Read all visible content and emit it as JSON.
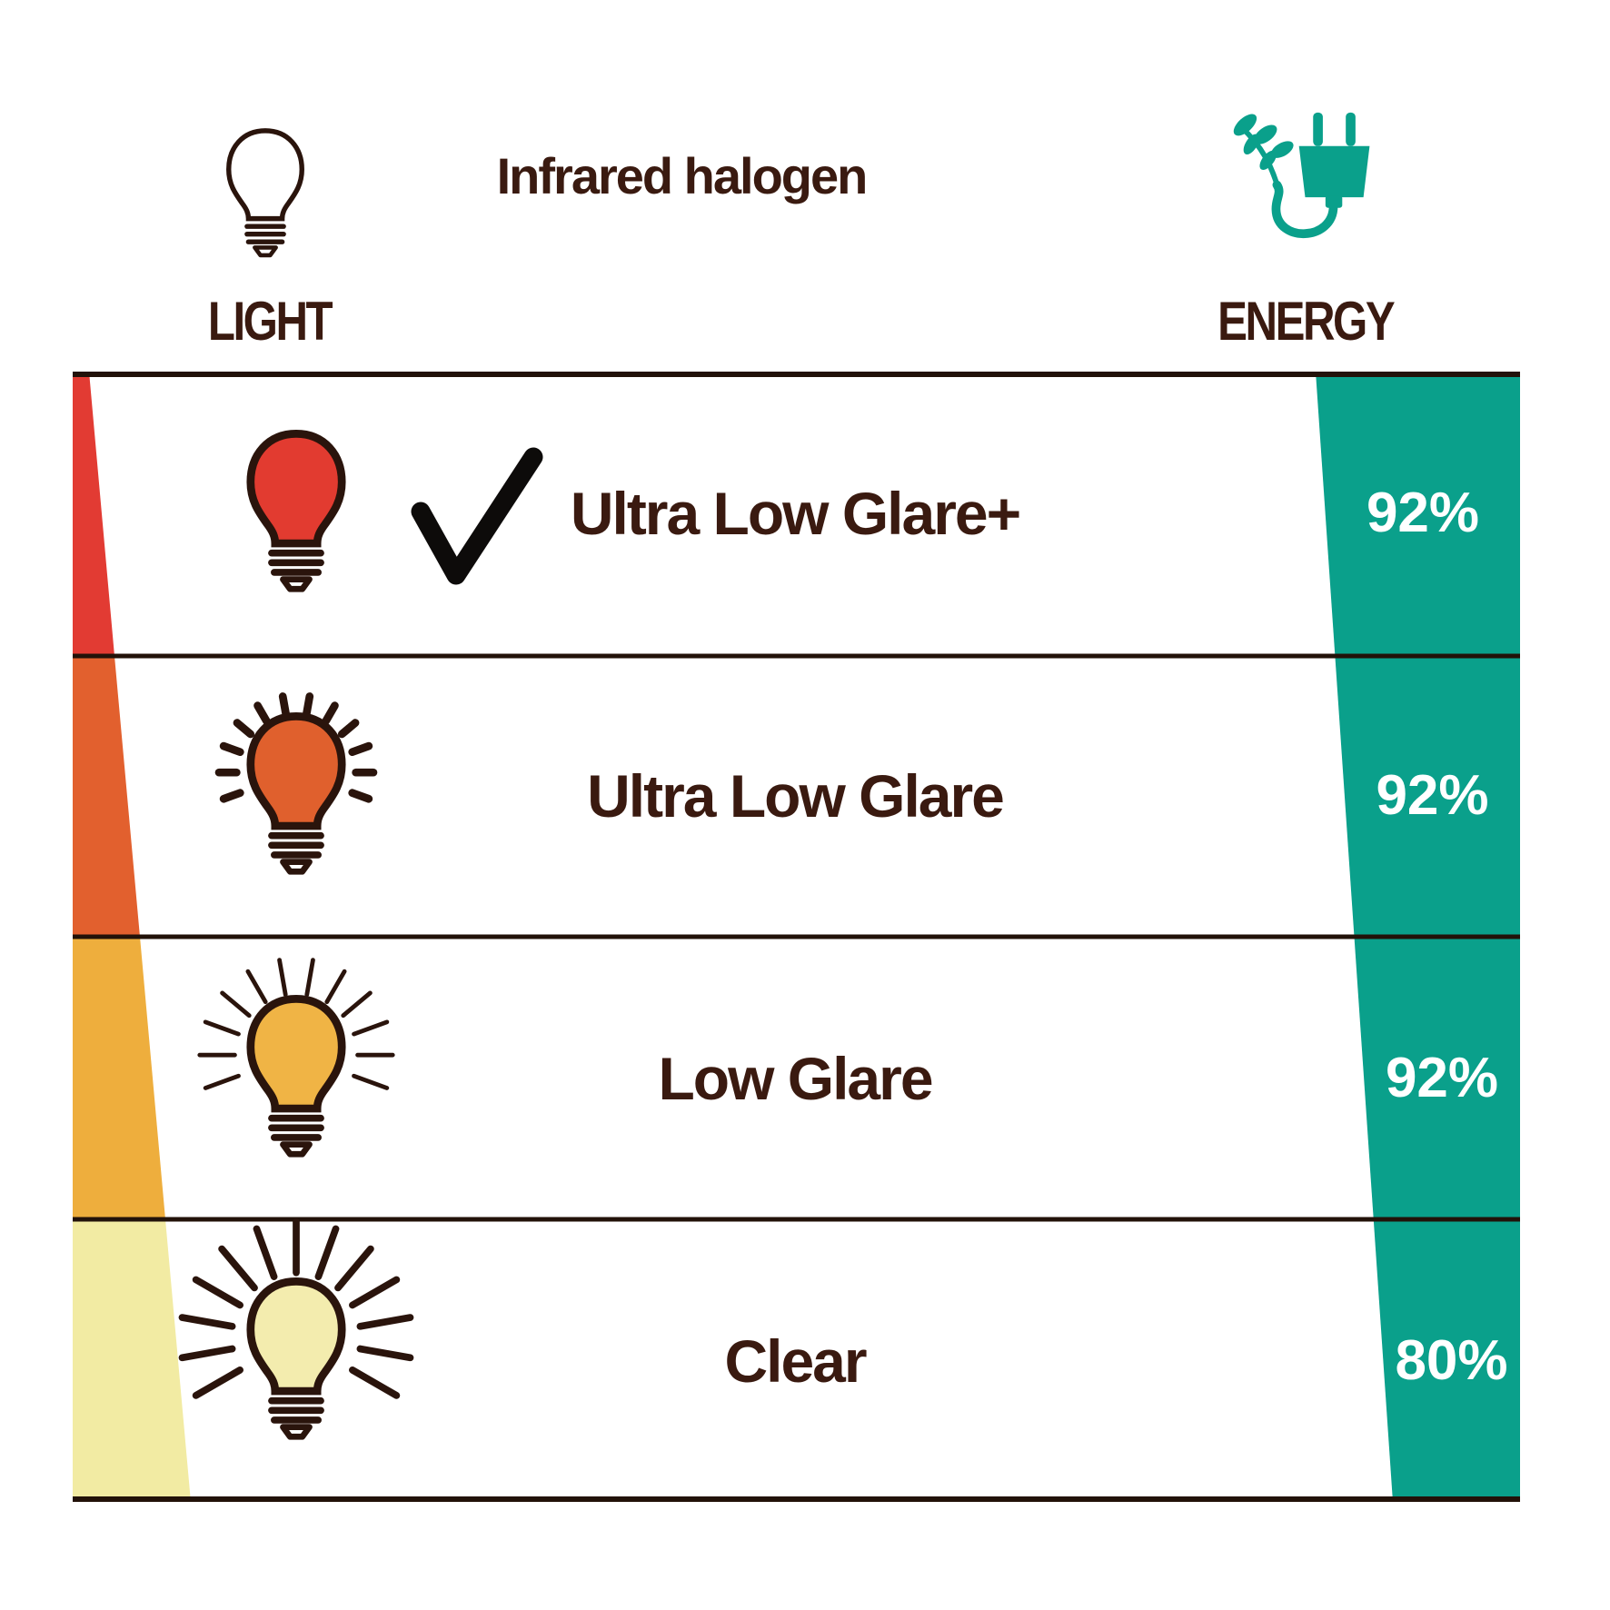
{
  "title": "Infrared halogen",
  "columns": {
    "light": "LIGHT",
    "energy": "ENERGY"
  },
  "rows": [
    {
      "label": "Ultra Low Glare+",
      "energy": "92%",
      "checked": true,
      "bulb": {
        "color": "#e23b30",
        "rays": "none"
      },
      "wedge_color": "#e23b33"
    },
    {
      "label": "Ultra Low Glare",
      "energy": "92%",
      "checked": false,
      "bulb": {
        "color": "#e0602d",
        "rays": "short"
      },
      "wedge_color": "#e2602e"
    },
    {
      "label": "Low Glare",
      "energy": "92%",
      "checked": false,
      "bulb": {
        "color": "#f0b445",
        "rays": "medium"
      },
      "wedge_color": "#eeae3d"
    },
    {
      "label": "Clear",
      "energy": "80%",
      "checked": false,
      "bulb": {
        "color": "#f3ecae",
        "rays": "long"
      },
      "wedge_color": "#f2eba3"
    }
  ],
  "colors": {
    "teal": "#0aa08b",
    "line": "#221209",
    "text": "#3a1a10",
    "check": "#0d0b0a",
    "bulb_outline": "#2a140c",
    "percent_text": "#ffffff"
  },
  "icons": {
    "light_icon": "bulb-outline-icon",
    "energy_icon": "leaf-plug-icon",
    "row_check": "checkmark-icon"
  }
}
